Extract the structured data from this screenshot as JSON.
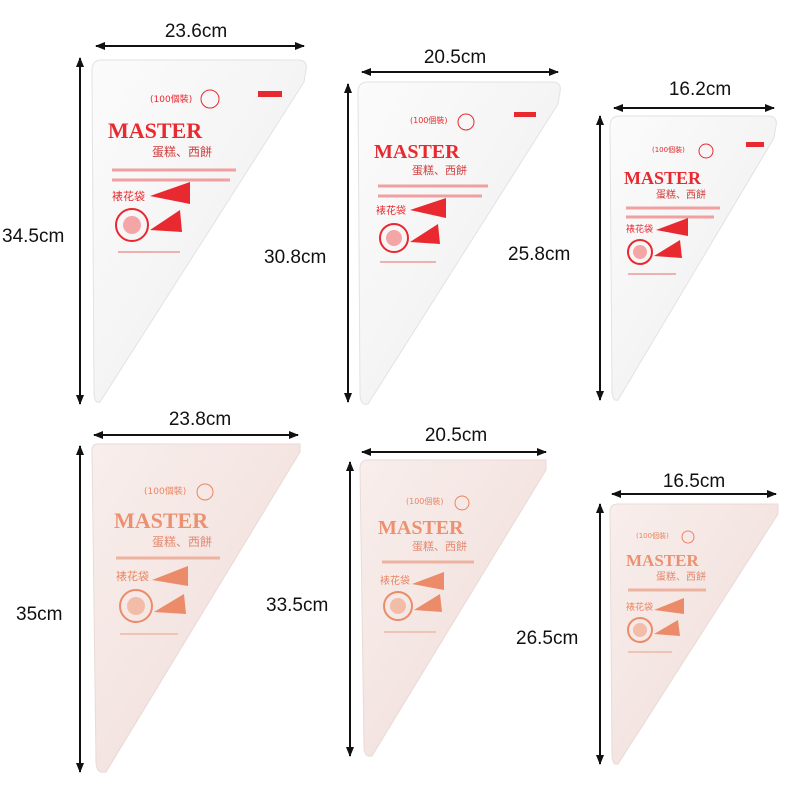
{
  "colors": {
    "print_red": "#e8292f",
    "print_orange": "#e8744a",
    "bag_top_row": "#f6f6f6",
    "bag_bottom_row": "#f4e6e3",
    "arrow": "#111111"
  },
  "bags": [
    {
      "id": "bag-1",
      "row": "top",
      "width_label": "23.6cm",
      "height_label": "34.5cm",
      "brand": "MASTER",
      "badge": "(100個裝)",
      "subtitle": "蛋糕、西餅"
    },
    {
      "id": "bag-2",
      "row": "top",
      "width_label": "20.5cm",
      "height_label": "30.8cm",
      "brand": "MASTER",
      "badge": "(100個裝)",
      "subtitle": "蛋糕、西餅"
    },
    {
      "id": "bag-3",
      "row": "top",
      "width_label": "16.2cm",
      "height_label": "25.8cm",
      "brand": "MASTER",
      "badge": "(100個裝)",
      "subtitle": "蛋糕、西餅"
    },
    {
      "id": "bag-4",
      "row": "bottom",
      "width_label": "23.8cm",
      "height_label": "35cm",
      "brand": "MASTER",
      "badge": "(100個裝)",
      "subtitle": "蛋糕、西餅"
    },
    {
      "id": "bag-5",
      "row": "bottom",
      "width_label": "20.5cm",
      "height_label": "33.5cm",
      "brand": "MASTER",
      "badge": "(100個裝)",
      "subtitle": "蛋糕、西餅"
    },
    {
      "id": "bag-6",
      "row": "bottom",
      "width_label": "16.5cm",
      "height_label": "26.5cm",
      "brand": "MASTER",
      "badge": "(100個裝)",
      "subtitle": "蛋糕、西餅"
    }
  ]
}
